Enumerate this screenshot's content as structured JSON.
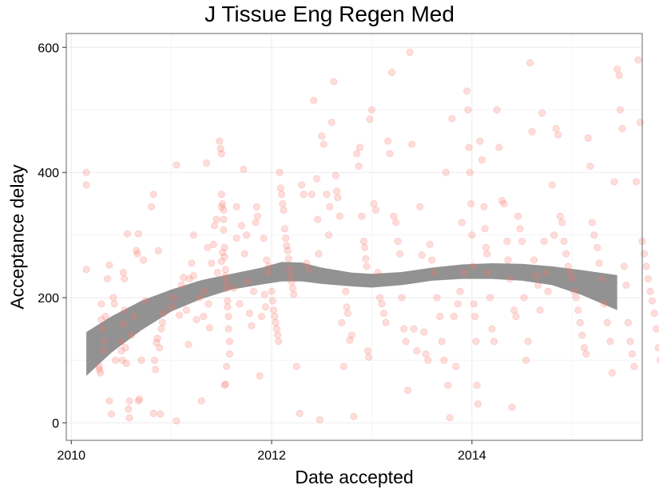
{
  "chart_data": {
    "type": "scatter",
    "title": "J Tissue Eng Regen Med",
    "xlabel": "Date accepted",
    "ylabel": "Acceptance delay",
    "xlim": [
      2009.95,
      2015.7
    ],
    "ylim": [
      -28,
      622
    ],
    "x_ticks": [
      2010,
      2012,
      2014
    ],
    "x_tick_labels": [
      "2010",
      "2012",
      "2014"
    ],
    "y_ticks": [
      0,
      200,
      400,
      600
    ],
    "y_tick_labels": [
      "0",
      "200",
      "400",
      "600"
    ],
    "grid": true,
    "point_color": "#F8766D",
    "point_alpha": 0.25,
    "smooth_color": "#7f7f7f",
    "smooth": [
      {
        "x": 2010.15,
        "lo": 75,
        "hi": 145
      },
      {
        "x": 2010.4,
        "lo": 112,
        "hi": 170
      },
      {
        "x": 2010.7,
        "lo": 148,
        "hi": 195
      },
      {
        "x": 2011.0,
        "lo": 178,
        "hi": 213
      },
      {
        "x": 2011.3,
        "lo": 198,
        "hi": 228
      },
      {
        "x": 2011.6,
        "lo": 213,
        "hi": 238
      },
      {
        "x": 2011.9,
        "lo": 221,
        "hi": 248
      },
      {
        "x": 2012.1,
        "lo": 226,
        "hi": 257
      },
      {
        "x": 2012.3,
        "lo": 226,
        "hi": 256
      },
      {
        "x": 2012.5,
        "lo": 222,
        "hi": 248
      },
      {
        "x": 2012.8,
        "lo": 218,
        "hi": 240
      },
      {
        "x": 2013.0,
        "lo": 216,
        "hi": 238
      },
      {
        "x": 2013.3,
        "lo": 220,
        "hi": 241
      },
      {
        "x": 2013.6,
        "lo": 227,
        "hi": 248
      },
      {
        "x": 2013.9,
        "lo": 230,
        "hi": 253
      },
      {
        "x": 2014.2,
        "lo": 230,
        "hi": 255
      },
      {
        "x": 2014.5,
        "lo": 227,
        "hi": 254
      },
      {
        "x": 2014.8,
        "lo": 220,
        "hi": 250
      },
      {
        "x": 2015.1,
        "lo": 204,
        "hi": 244
      },
      {
        "x": 2015.45,
        "lo": 180,
        "hi": 236
      }
    ],
    "points": [
      [
        2010.15,
        400
      ],
      [
        2010.15,
        380
      ],
      [
        2010.15,
        245
      ],
      [
        2010.28,
        85
      ],
      [
        2010.28,
        90
      ],
      [
        2010.29,
        80
      ],
      [
        2010.3,
        190
      ],
      [
        2010.3,
        165
      ],
      [
        2010.31,
        150
      ],
      [
        2010.32,
        115
      ],
      [
        2010.33,
        130
      ],
      [
        2010.34,
        170
      ],
      [
        2010.36,
        230
      ],
      [
        2010.38,
        252
      ],
      [
        2010.38,
        35
      ],
      [
        2010.4,
        14
      ],
      [
        2010.42,
        200
      ],
      [
        2010.43,
        190
      ],
      [
        2010.44,
        100
      ],
      [
        2010.5,
        130
      ],
      [
        2010.5,
        115
      ],
      [
        2010.51,
        100
      ],
      [
        2010.52,
        158
      ],
      [
        2010.52,
        240
      ],
      [
        2010.53,
        230
      ],
      [
        2010.53,
        180
      ],
      [
        2010.54,
        120
      ],
      [
        2010.55,
        95
      ],
      [
        2010.56,
        302
      ],
      [
        2010.57,
        22
      ],
      [
        2010.58,
        8
      ],
      [
        2010.58,
        35
      ],
      [
        2010.6,
        140
      ],
      [
        2010.63,
        170
      ],
      [
        2010.65,
        275
      ],
      [
        2010.66,
        270
      ],
      [
        2010.67,
        302
      ],
      [
        2010.67,
        35
      ],
      [
        2010.68,
        38
      ],
      [
        2010.7,
        100
      ],
      [
        2010.72,
        260
      ],
      [
        2010.74,
        195
      ],
      [
        2010.8,
        345
      ],
      [
        2010.82,
        365
      ],
      [
        2010.82,
        15
      ],
      [
        2010.83,
        100
      ],
      [
        2010.84,
        85
      ],
      [
        2010.85,
        128
      ],
      [
        2010.86,
        135
      ],
      [
        2010.87,
        275
      ],
      [
        2010.88,
        120
      ],
      [
        2010.89,
        14
      ],
      [
        2010.9,
        150
      ],
      [
        2010.91,
        160
      ],
      [
        2010.92,
        175
      ],
      [
        2011.0,
        185
      ],
      [
        2011.02,
        200
      ],
      [
        2011.05,
        412
      ],
      [
        2011.05,
        3
      ],
      [
        2011.08,
        172
      ],
      [
        2011.1,
        220
      ],
      [
        2011.12,
        232
      ],
      [
        2011.15,
        180
      ],
      [
        2011.17,
        125
      ],
      [
        2011.18,
        230
      ],
      [
        2011.2,
        255
      ],
      [
        2011.22,
        235
      ],
      [
        2011.22,
        300
      ],
      [
        2011.25,
        165
      ],
      [
        2011.28,
        200
      ],
      [
        2011.3,
        35
      ],
      [
        2011.32,
        170
      ],
      [
        2011.33,
        210
      ],
      [
        2011.35,
        415
      ],
      [
        2011.36,
        280
      ],
      [
        2011.37,
        190
      ],
      [
        2011.38,
        152
      ],
      [
        2011.4,
        255
      ],
      [
        2011.42,
        285
      ],
      [
        2011.43,
        315
      ],
      [
        2011.45,
        325
      ],
      [
        2011.46,
        240
      ],
      [
        2011.48,
        450
      ],
      [
        2011.49,
        438
      ],
      [
        2011.5,
        430
      ],
      [
        2011.5,
        365
      ],
      [
        2011.5,
        345
      ],
      [
        2011.51,
        350
      ],
      [
        2011.52,
        325
      ],
      [
        2011.52,
        308
      ],
      [
        2011.53,
        280
      ],
      [
        2011.53,
        265
      ],
      [
        2011.54,
        245
      ],
      [
        2011.54,
        235
      ],
      [
        2011.55,
        225
      ],
      [
        2011.55,
        215
      ],
      [
        2011.56,
        195
      ],
      [
        2011.56,
        185
      ],
      [
        2011.57,
        170
      ],
      [
        2011.57,
        150
      ],
      [
        2011.58,
        130
      ],
      [
        2011.58,
        110
      ],
      [
        2011.55,
        90
      ],
      [
        2011.54,
        62
      ],
      [
        2011.53,
        60
      ],
      [
        2011.52,
        340
      ],
      [
        2011.51,
        272
      ],
      [
        2011.5,
        258
      ],
      [
        2011.62,
        215
      ],
      [
        2011.65,
        345
      ],
      [
        2011.65,
        295
      ],
      [
        2011.68,
        190
      ],
      [
        2011.7,
        315
      ],
      [
        2011.72,
        405
      ],
      [
        2011.73,
        270
      ],
      [
        2011.75,
        300
      ],
      [
        2011.76,
        225
      ],
      [
        2011.78,
        175
      ],
      [
        2011.8,
        155
      ],
      [
        2011.82,
        210
      ],
      [
        2011.84,
        320
      ],
      [
        2011.85,
        345
      ],
      [
        2011.86,
        330
      ],
      [
        2011.88,
        75
      ],
      [
        2011.9,
        170
      ],
      [
        2011.92,
        295
      ],
      [
        2011.93,
        205
      ],
      [
        2011.94,
        185
      ],
      [
        2011.95,
        260
      ],
      [
        2011.96,
        240
      ],
      [
        2011.97,
        250
      ],
      [
        2012.0,
        210
      ],
      [
        2012.01,
        195
      ],
      [
        2012.02,
        180
      ],
      [
        2012.03,
        170
      ],
      [
        2012.04,
        160
      ],
      [
        2012.05,
        150
      ],
      [
        2012.06,
        140
      ],
      [
        2012.07,
        130
      ],
      [
        2012.08,
        400
      ],
      [
        2012.09,
        375
      ],
      [
        2012.1,
        365
      ],
      [
        2012.11,
        350
      ],
      [
        2012.12,
        340
      ],
      [
        2012.13,
        310
      ],
      [
        2012.14,
        295
      ],
      [
        2012.15,
        283
      ],
      [
        2012.16,
        275
      ],
      [
        2012.17,
        262
      ],
      [
        2012.18,
        245
      ],
      [
        2012.19,
        235
      ],
      [
        2012.2,
        225
      ],
      [
        2012.21,
        215
      ],
      [
        2012.22,
        205
      ],
      [
        2012.25,
        90
      ],
      [
        2012.28,
        15
      ],
      [
        2012.3,
        380
      ],
      [
        2012.32,
        365
      ],
      [
        2012.35,
        255
      ],
      [
        2012.37,
        245
      ],
      [
        2012.4,
        365
      ],
      [
        2012.42,
        515
      ],
      [
        2012.45,
        390
      ],
      [
        2012.46,
        325
      ],
      [
        2012.47,
        270
      ],
      [
        2012.48,
        5
      ],
      [
        2012.5,
        458
      ],
      [
        2012.52,
        445
      ],
      [
        2012.55,
        365
      ],
      [
        2012.57,
        300
      ],
      [
        2012.58,
        345
      ],
      [
        2012.6,
        480
      ],
      [
        2012.62,
        545
      ],
      [
        2012.64,
        395
      ],
      [
        2012.65,
        370
      ],
      [
        2012.66,
        360
      ],
      [
        2012.68,
        330
      ],
      [
        2012.7,
        160
      ],
      [
        2012.72,
        90
      ],
      [
        2012.74,
        210
      ],
      [
        2012.75,
        185
      ],
      [
        2012.76,
        175
      ],
      [
        2012.78,
        132
      ],
      [
        2012.8,
        140
      ],
      [
        2012.82,
        10
      ],
      [
        2012.85,
        430
      ],
      [
        2012.87,
        410
      ],
      [
        2012.88,
        440
      ],
      [
        2012.9,
        330
      ],
      [
        2012.92,
        290
      ],
      [
        2012.93,
        280
      ],
      [
        2012.94,
        262
      ],
      [
        2012.95,
        250
      ],
      [
        2012.96,
        115
      ],
      [
        2012.97,
        105
      ],
      [
        2012.98,
        485
      ],
      [
        2013.0,
        500
      ],
      [
        2013.02,
        350
      ],
      [
        2013.04,
        340
      ],
      [
        2013.06,
        240
      ],
      [
        2013.08,
        200
      ],
      [
        2013.1,
        190
      ],
      [
        2013.12,
        175
      ],
      [
        2013.14,
        160
      ],
      [
        2013.16,
        450
      ],
      [
        2013.18,
        430
      ],
      [
        2013.2,
        560
      ],
      [
        2013.22,
        330
      ],
      [
        2013.24,
        320
      ],
      [
        2013.26,
        290
      ],
      [
        2013.28,
        270
      ],
      [
        2013.3,
        200
      ],
      [
        2013.32,
        150
      ],
      [
        2013.34,
        130
      ],
      [
        2013.36,
        52
      ],
      [
        2013.38,
        592
      ],
      [
        2013.4,
        445
      ],
      [
        2013.42,
        150
      ],
      [
        2013.45,
        115
      ],
      [
        2013.48,
        345
      ],
      [
        2013.5,
        268
      ],
      [
        2013.52,
        145
      ],
      [
        2013.54,
        110
      ],
      [
        2013.56,
        100
      ],
      [
        2013.58,
        285
      ],
      [
        2013.6,
        260
      ],
      [
        2013.62,
        240
      ],
      [
        2013.65,
        200
      ],
      [
        2013.68,
        170
      ],
      [
        2013.7,
        130
      ],
      [
        2013.72,
        100
      ],
      [
        2013.74,
        400
      ],
      [
        2013.76,
        60
      ],
      [
        2013.78,
        8
      ],
      [
        2013.8,
        486
      ],
      [
        2013.82,
        170
      ],
      [
        2013.84,
        90
      ],
      [
        2013.86,
        190
      ],
      [
        2013.88,
        210
      ],
      [
        2013.9,
        320
      ],
      [
        2013.92,
        240
      ],
      [
        2013.95,
        530
      ],
      [
        2013.96,
        500
      ],
      [
        2013.97,
        440
      ],
      [
        2013.98,
        400
      ],
      [
        2013.99,
        350
      ],
      [
        2014.0,
        300
      ],
      [
        2014.01,
        250
      ],
      [
        2014.02,
        190
      ],
      [
        2014.03,
        170
      ],
      [
        2014.04,
        130
      ],
      [
        2014.05,
        60
      ],
      [
        2014.06,
        30
      ],
      [
        2014.08,
        450
      ],
      [
        2014.1,
        420
      ],
      [
        2014.12,
        345
      ],
      [
        2014.13,
        310
      ],
      [
        2014.14,
        280
      ],
      [
        2014.15,
        270
      ],
      [
        2014.16,
        240
      ],
      [
        2014.18,
        200
      ],
      [
        2014.2,
        150
      ],
      [
        2014.22,
        130
      ],
      [
        2014.25,
        500
      ],
      [
        2014.27,
        440
      ],
      [
        2014.3,
        355
      ],
      [
        2014.32,
        350
      ],
      [
        2014.35,
        290
      ],
      [
        2014.36,
        260
      ],
      [
        2014.38,
        230
      ],
      [
        2014.4,
        25
      ],
      [
        2014.42,
        180
      ],
      [
        2014.44,
        170
      ],
      [
        2014.46,
        330
      ],
      [
        2014.48,
        310
      ],
      [
        2014.5,
        290
      ],
      [
        2014.52,
        200
      ],
      [
        2014.54,
        100
      ],
      [
        2014.56,
        130
      ],
      [
        2014.58,
        575
      ],
      [
        2014.6,
        465
      ],
      [
        2014.62,
        260
      ],
      [
        2014.64,
        235
      ],
      [
        2014.66,
        220
      ],
      [
        2014.68,
        180
      ],
      [
        2014.7,
        495
      ],
      [
        2014.72,
        290
      ],
      [
        2014.74,
        240
      ],
      [
        2014.76,
        210
      ],
      [
        2014.8,
        380
      ],
      [
        2014.82,
        300
      ],
      [
        2014.84,
        470
      ],
      [
        2014.86,
        460
      ],
      [
        2014.88,
        330
      ],
      [
        2014.9,
        320
      ],
      [
        2014.92,
        290
      ],
      [
        2014.94,
        270
      ],
      [
        2014.96,
        250
      ],
      [
        2014.98,
        240
      ],
      [
        2015.0,
        230
      ],
      [
        2015.02,
        210
      ],
      [
        2015.04,
        200
      ],
      [
        2015.06,
        180
      ],
      [
        2015.08,
        160
      ],
      [
        2015.1,
        140
      ],
      [
        2015.12,
        120
      ],
      [
        2015.14,
        110
      ],
      [
        2015.16,
        455
      ],
      [
        2015.18,
        410
      ],
      [
        2015.2,
        320
      ],
      [
        2015.22,
        300
      ],
      [
        2015.25,
        280
      ],
      [
        2015.27,
        255
      ],
      [
        2015.3,
        230
      ],
      [
        2015.32,
        190
      ],
      [
        2015.35,
        160
      ],
      [
        2015.38,
        130
      ],
      [
        2015.4,
        80
      ],
      [
        2015.42,
        385
      ],
      [
        2015.45,
        565
      ],
      [
        2015.47,
        555
      ],
      [
        2015.48,
        500
      ],
      [
        2015.5,
        470
      ],
      [
        2015.52,
        250
      ],
      [
        2015.54,
        220
      ],
      [
        2015.56,
        160
      ],
      [
        2015.58,
        130
      ],
      [
        2015.6,
        110
      ],
      [
        2015.62,
        90
      ],
      [
        2015.64,
        385
      ],
      [
        2015.66,
        580
      ],
      [
        2015.68,
        480
      ],
      [
        2015.7,
        290
      ],
      [
        2015.72,
        270
      ],
      [
        2015.74,
        250
      ],
      [
        2015.76,
        230
      ],
      [
        2015.78,
        210
      ],
      [
        2015.8,
        195
      ],
      [
        2015.82,
        175
      ],
      [
        2015.84,
        150
      ],
      [
        2015.86,
        120
      ],
      [
        2015.88,
        100
      ]
    ]
  }
}
